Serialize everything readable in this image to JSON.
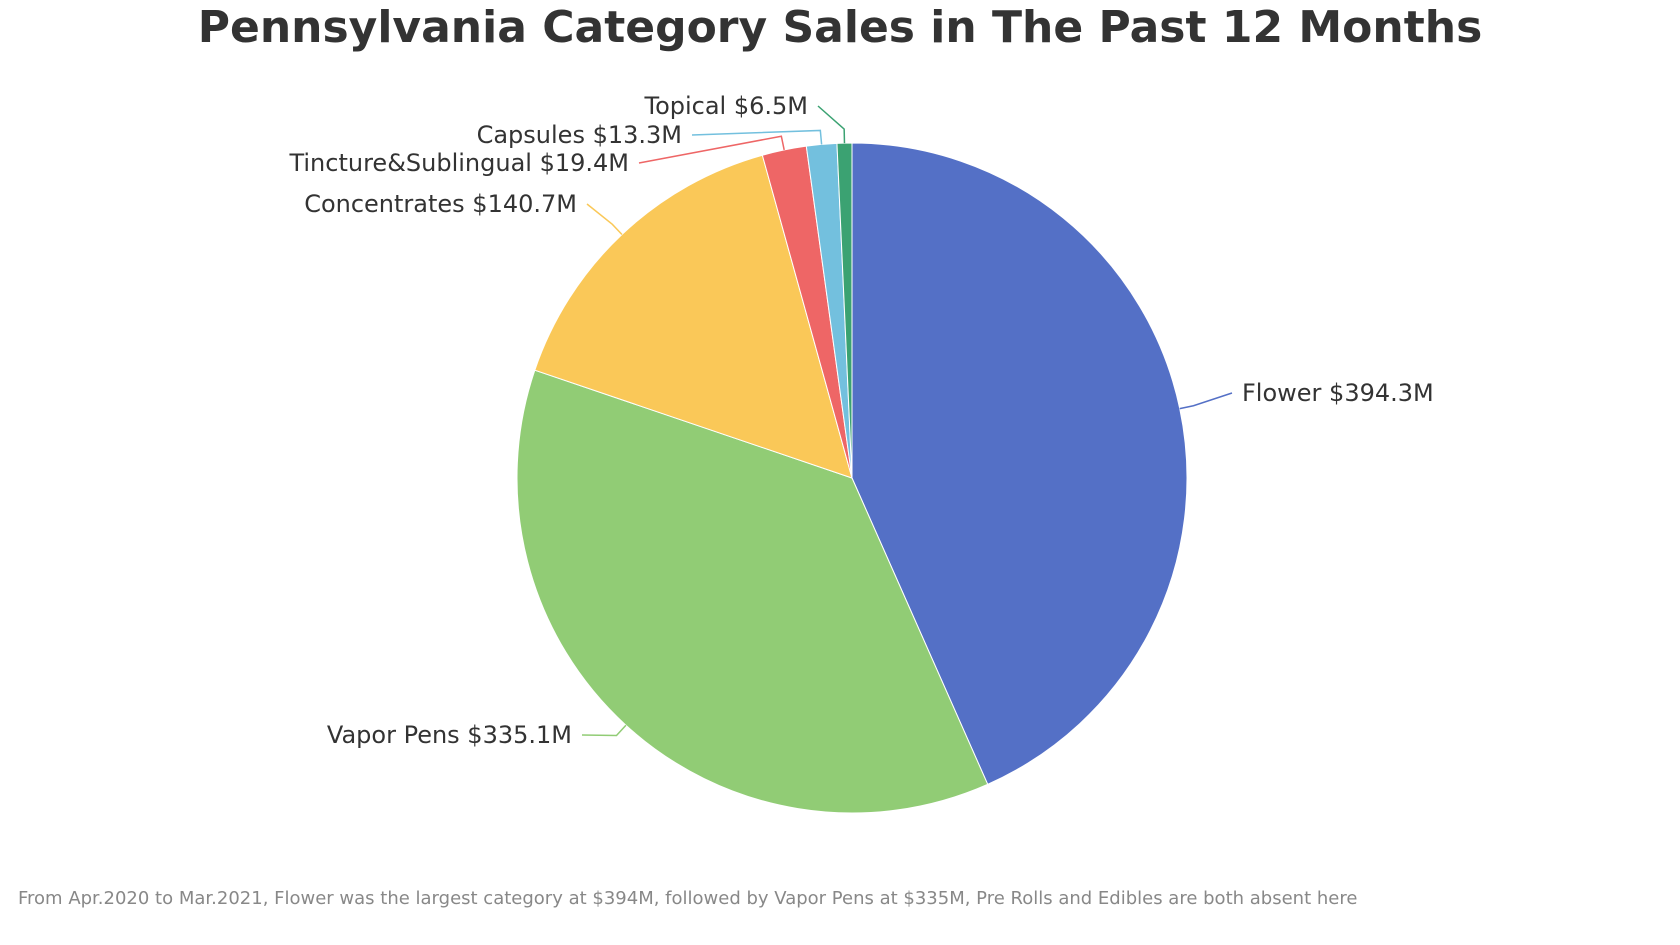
{
  "chart_data": {
    "type": "pie",
    "title": "Pennsylvania Category Sales in The Past 12 Months",
    "slices": [
      {
        "name": "Flower",
        "value": 394.3,
        "label": "$394.3M",
        "color": "#5470c6"
      },
      {
        "name": "Vapor Pens",
        "value": 335.1,
        "label": "$335.1M",
        "color": "#91cc75"
      },
      {
        "name": "Concentrates",
        "value": 140.7,
        "label": "$140.7M",
        "color": "#fac858"
      },
      {
        "name": "Tincture&Sublingual",
        "value": 19.4,
        "label": "$19.4M",
        "color": "#ee6666"
      },
      {
        "name": "Capsules",
        "value": 13.3,
        "label": "$13.3M",
        "color": "#73c0de"
      },
      {
        "name": "Topical",
        "value": 6.5,
        "label": "$6.5M",
        "color": "#3ba272"
      }
    ],
    "legend": "none",
    "direction": "clockwise-from-top"
  },
  "footnote": "From Apr.2020 to Mar.2021, Flower was the largest category at $394M, followed by Vapor Pens at $335M, Pre Rolls and Edibles are both absent here"
}
